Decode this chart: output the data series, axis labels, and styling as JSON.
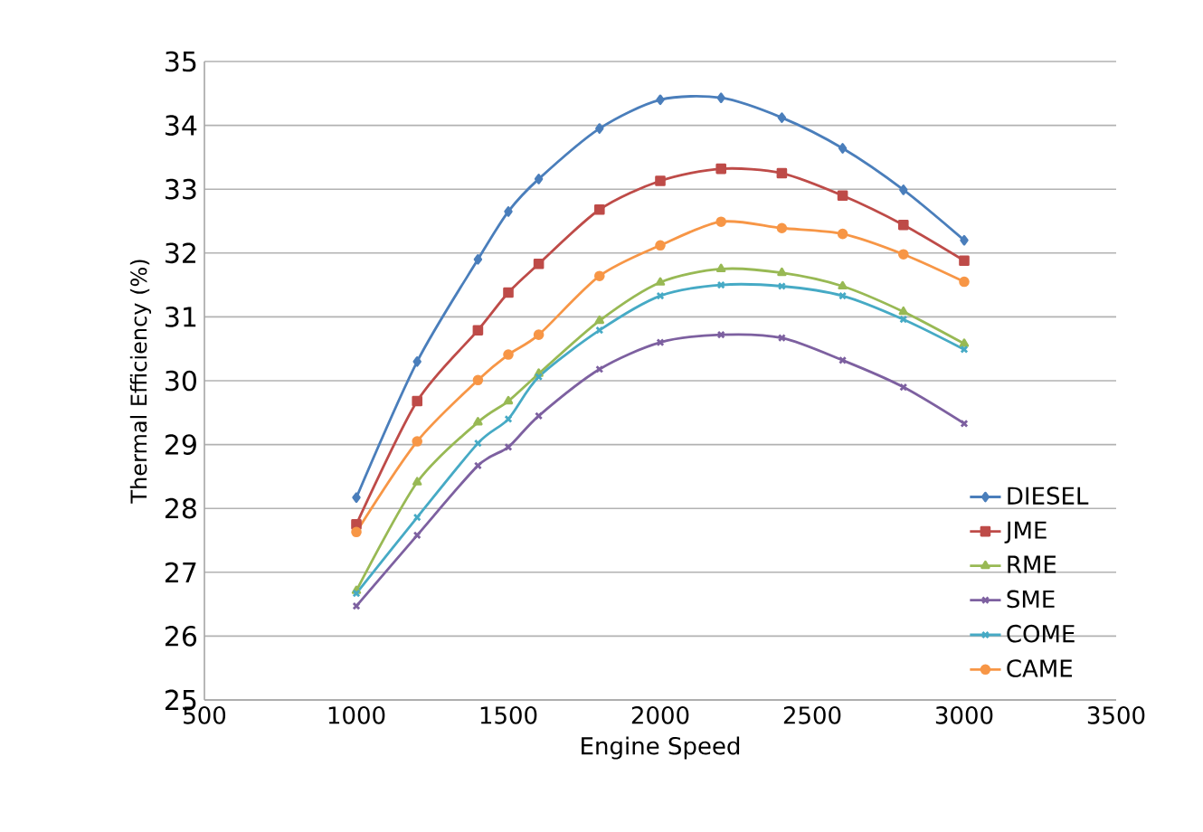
{
  "chart_data": {
    "type": "line",
    "xlabel": "Engine Speed",
    "ylabel": "Thermal Efficiency (%)",
    "x": [
      1000,
      1200,
      1400,
      1500,
      1600,
      1800,
      2000,
      2200,
      2400,
      2600,
      2800,
      3000
    ],
    "series": [
      {
        "name": "DIESEL",
        "color": "#4a7ebb",
        "marker": "diamond",
        "values": [
          28.17,
          30.3,
          31.9,
          32.65,
          33.16,
          33.95,
          34.4,
          34.43,
          34.12,
          33.64,
          32.99,
          32.2
        ]
      },
      {
        "name": "JME",
        "color": "#be4b48",
        "marker": "square",
        "values": [
          27.75,
          29.68,
          30.79,
          31.38,
          31.83,
          32.68,
          33.13,
          33.32,
          33.25,
          32.9,
          32.44,
          31.88
        ]
      },
      {
        "name": "RME",
        "color": "#98b954",
        "marker": "triangle",
        "values": [
          26.71,
          28.41,
          29.35,
          29.68,
          30.11,
          30.94,
          31.54,
          31.75,
          31.69,
          31.48,
          31.08,
          30.58
        ]
      },
      {
        "name": "SME",
        "color": "#7d60a0",
        "marker": "cross",
        "values": [
          26.47,
          27.58,
          28.67,
          28.96,
          29.45,
          30.18,
          30.6,
          30.72,
          30.67,
          30.32,
          29.9,
          29.33
        ]
      },
      {
        "name": "COME",
        "color": "#46aac5",
        "marker": "cross",
        "values": [
          26.67,
          27.86,
          29.02,
          29.4,
          30.06,
          30.79,
          31.33,
          31.5,
          31.48,
          31.33,
          30.96,
          30.49
        ]
      },
      {
        "name": "CAME",
        "color": "#f79646",
        "marker": "circle",
        "values": [
          27.63,
          29.05,
          30.01,
          30.41,
          30.72,
          31.64,
          32.12,
          32.49,
          32.39,
          32.3,
          31.98,
          31.55
        ]
      }
    ],
    "xlim": [
      500,
      3500
    ],
    "xticks": [
      500,
      1000,
      1500,
      2000,
      2500,
      3000,
      3500
    ],
    "ylim": [
      25,
      35
    ],
    "yticks": [
      25,
      26,
      27,
      28,
      29,
      30,
      31,
      32,
      33,
      34,
      35
    ],
    "grid": "y",
    "legend": "bottom right",
    "line_style": "solid"
  }
}
